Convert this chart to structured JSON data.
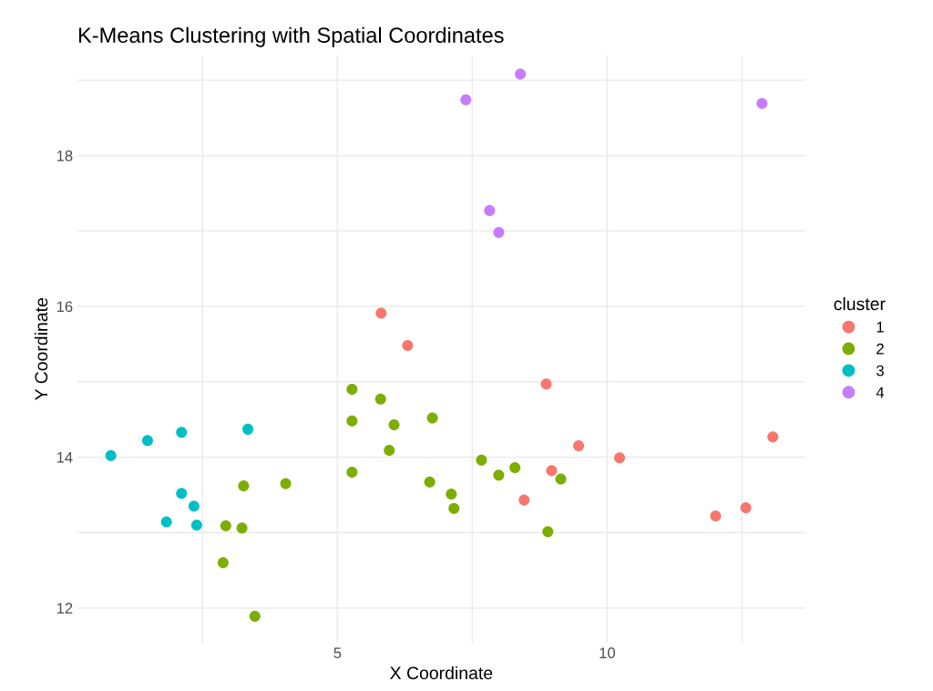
{
  "chart_data": {
    "type": "scatter",
    "title": "K-Means Clustering with Spatial Coordinates",
    "xlabel": "X Coordinate",
    "ylabel": "Y Coordinate",
    "legend_title": "cluster",
    "legend": "right",
    "grid": true,
    "marker": "circle",
    "xlim": [
      0.18,
      13.67
    ],
    "ylim": [
      11.54,
      19.33
    ],
    "xticks": [
      {
        "value": 2.5,
        "label": null
      },
      5,
      {
        "value": 7.5,
        "label": null
      },
      10,
      {
        "value": 12.5,
        "label": null
      }
    ],
    "yticks": [
      12,
      {
        "value": 13,
        "label": null
      },
      14,
      {
        "value": 15,
        "label": null
      },
      16,
      {
        "value": 17,
        "label": null
      },
      18,
      {
        "value": 19,
        "label": null
      }
    ],
    "series": [
      {
        "name": "1",
        "color": "#f8766d",
        "x": [
          5.81,
          6.3,
          8.87,
          9.47,
          10.23,
          8.97,
          8.46,
          13.07,
          12.01,
          12.57
        ],
        "values": [
          15.91,
          15.48,
          14.97,
          14.15,
          13.99,
          13.82,
          13.43,
          14.27,
          13.22,
          13.33
        ]
      },
      {
        "name": "2",
        "color": "#7cae00",
        "x": [
          5.27,
          5.8,
          5.27,
          6.05,
          6.76,
          5.96,
          5.27,
          6.71,
          7.11,
          7.16,
          7.67,
          7.99,
          8.29,
          9.14,
          8.9,
          3.26,
          4.04,
          2.93,
          3.23,
          2.88,
          3.47
        ],
        "values": [
          14.9,
          14.77,
          14.48,
          14.43,
          14.52,
          14.09,
          13.8,
          13.67,
          13.51,
          13.32,
          13.96,
          13.76,
          13.86,
          13.71,
          13.01,
          13.62,
          13.65,
          13.09,
          13.06,
          12.6,
          11.89
        ]
      },
      {
        "name": "3",
        "color": "#00bfc4",
        "x": [
          0.8,
          1.48,
          2.11,
          3.34,
          2.11,
          2.34,
          1.83,
          2.39
        ],
        "values": [
          14.02,
          14.22,
          14.33,
          14.37,
          13.52,
          13.35,
          13.14,
          13.1
        ]
      },
      {
        "name": "4",
        "color": "#c77cff",
        "x": [
          7.38,
          8.39,
          12.87,
          7.82,
          7.99
        ],
        "values": [
          18.74,
          19.08,
          18.69,
          17.27,
          16.98
        ]
      }
    ]
  }
}
